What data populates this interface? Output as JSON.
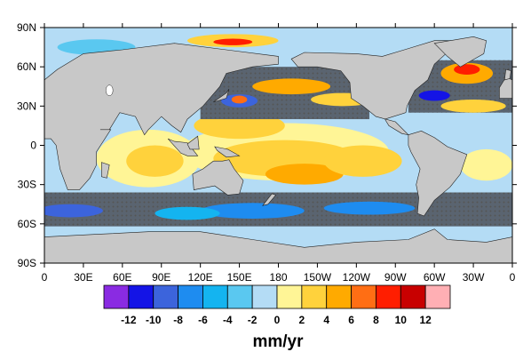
{
  "chart_data": {
    "type": "heatmap",
    "title": "",
    "xlim_deg": [
      0,
      360
    ],
    "ylim_deg": [
      -90,
      90
    ],
    "x_ticks": [
      {
        "deg": 0,
        "label": "0"
      },
      {
        "deg": 30,
        "label": "30E"
      },
      {
        "deg": 60,
        "label": "60E"
      },
      {
        "deg": 90,
        "label": "90E"
      },
      {
        "deg": 120,
        "label": "120E"
      },
      {
        "deg": 150,
        "label": "150E"
      },
      {
        "deg": 180,
        "label": "180"
      },
      {
        "deg": 210,
        "label": "150W"
      },
      {
        "deg": 240,
        "label": "120W"
      },
      {
        "deg": 270,
        "label": "90W"
      },
      {
        "deg": 300,
        "label": "60W"
      },
      {
        "deg": 330,
        "label": "30W"
      },
      {
        "deg": 360,
        "label": "0"
      }
    ],
    "y_ticks": [
      {
        "deg": 90,
        "label": "90N"
      },
      {
        "deg": 60,
        "label": "60N"
      },
      {
        "deg": 30,
        "label": "30N"
      },
      {
        "deg": 0,
        "label": "0"
      },
      {
        "deg": -30,
        "label": "30S"
      },
      {
        "deg": -60,
        "label": "60S"
      },
      {
        "deg": -90,
        "label": "90S"
      }
    ],
    "colorbar": {
      "unit_label": "mm/yr",
      "labels": [
        "-12",
        "-10",
        "-8",
        "-6",
        "-4",
        "-2",
        "0",
        "2",
        "4",
        "6",
        "8",
        "10",
        "12"
      ],
      "bin_colors": [
        "#8a2be2",
        "#1414e6",
        "#3c64dc",
        "#1e8cf0",
        "#14b4f0",
        "#5ac8f0",
        "#b4dcf5",
        "#fff596",
        "#ffd23c",
        "#ffaa00",
        "#ff6e14",
        "#ff1e00",
        "#c80000",
        "#ffafb4"
      ]
    },
    "land_color": "#c8c8c8",
    "regions": [
      {
        "name": "arctic-ocean",
        "lon": [
          0,
          360
        ],
        "lat": [
          68,
          90
        ],
        "color": "#b4dcf5"
      },
      {
        "name": "arctic-positive-band",
        "lon": [
          128,
          162
        ],
        "lat": [
          74,
          84
        ],
        "color": "#ffd23c"
      },
      {
        "name": "arctic-max",
        "lon": [
          138,
          152
        ],
        "lat": [
          76,
          81
        ],
        "color": "#ff1e00"
      },
      {
        "name": "north-atlantic-max",
        "lon": [
          305,
          345
        ],
        "lat": [
          45,
          65
        ],
        "color": "#ff6e14"
      },
      {
        "name": "north-pacific-positive",
        "lon": [
          170,
          230
        ],
        "lat": [
          40,
          52
        ],
        "color": "#ffaa00"
      },
      {
        "name": "kuroshio-negative",
        "lon": [
          140,
          170
        ],
        "lat": [
          28,
          42
        ],
        "color": "#3c64dc"
      },
      {
        "name": "tropical-indo-pacific-positive",
        "lon": [
          40,
          270
        ],
        "lat": [
          -25,
          15
        ],
        "color": "#ffd23c"
      },
      {
        "name": "southern-ocean-negative",
        "lon": [
          0,
          360
        ],
        "lat": [
          -60,
          -40
        ],
        "color": "#1e8cf0"
      },
      {
        "name": "antarctic-coast",
        "lon": [
          0,
          360
        ],
        "lat": [
          -78,
          -60
        ],
        "color": "#b4dcf5"
      }
    ]
  }
}
